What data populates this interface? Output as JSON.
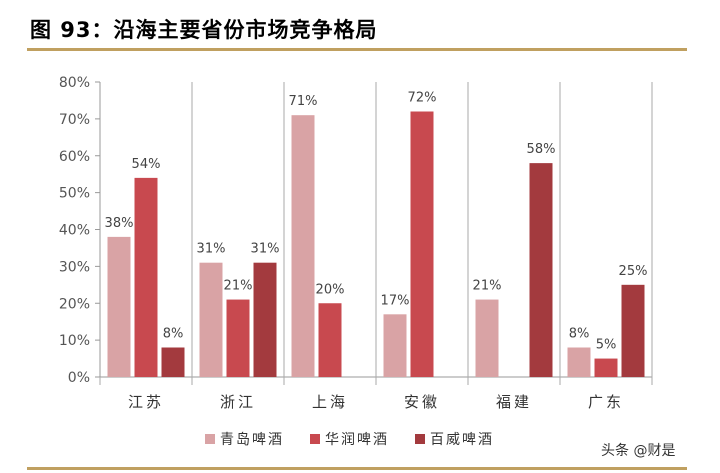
{
  "title": "图 93：沿海主要省份市场竞争格局",
  "watermark": "头条 @财是",
  "chart_data": {
    "type": "bar",
    "categories": [
      "江苏",
      "浙江",
      "上海",
      "安徽",
      "福建",
      "广东"
    ],
    "ylim": [
      0,
      80
    ],
    "yticks": [
      "0%",
      "10%",
      "20%",
      "30%",
      "40%",
      "50%",
      "60%",
      "70%",
      "80%"
    ],
    "grid": false,
    "legend_position": "bottom",
    "series": [
      {
        "name": "青岛啤酒",
        "color": "#d9a3a5",
        "values": [
          38,
          31,
          71,
          17,
          21,
          8
        ],
        "labels": [
          "38%",
          "31%",
          "71%",
          "17%",
          "21%",
          "8%"
        ]
      },
      {
        "name": "华润啤酒",
        "color": "#c8494f",
        "values": [
          54,
          21,
          20,
          72,
          null,
          5
        ],
        "labels": [
          "54%",
          "21%",
          "20%",
          "72%",
          "",
          "5%"
        ]
      },
      {
        "name": "百威啤酒",
        "color": "#a33a3e",
        "values": [
          8,
          31,
          null,
          null,
          58,
          25
        ],
        "labels": [
          "8%",
          "31%",
          "",
          "",
          "58%",
          "25%"
        ]
      }
    ]
  }
}
